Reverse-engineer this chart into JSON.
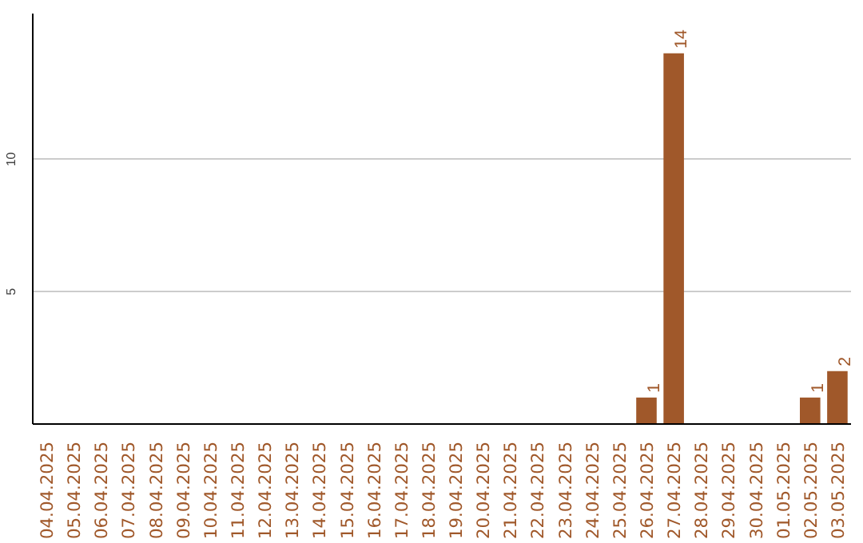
{
  "chart_data": {
    "type": "bar",
    "categories": [
      "04.04.2025",
      "05.04.2025",
      "06.04.2025",
      "07.04.2025",
      "08.04.2025",
      "09.04.2025",
      "10.04.2025",
      "11.04.2025",
      "12.04.2025",
      "13.04.2025",
      "14.04.2025",
      "15.04.2025",
      "16.04.2025",
      "17.04.2025",
      "18.04.2025",
      "19.04.2025",
      "20.04.2025",
      "21.04.2025",
      "22.04.2025",
      "23.04.2025",
      "24.04.2025",
      "25.04.2025",
      "26.04.2025",
      "27.04.2025",
      "28.04.2025",
      "29.04.2025",
      "30.04.2025",
      "01.05.2025",
      "02.05.2025",
      "03.05.2025"
    ],
    "values": [
      0,
      0,
      0,
      0,
      0,
      0,
      0,
      0,
      0,
      0,
      0,
      0,
      0,
      0,
      0,
      0,
      0,
      0,
      0,
      0,
      0,
      0,
      1,
      14,
      0,
      0,
      0,
      0,
      1,
      2
    ],
    "value_labels": [
      null,
      null,
      null,
      null,
      null,
      null,
      null,
      null,
      null,
      null,
      null,
      null,
      null,
      null,
      null,
      null,
      null,
      null,
      null,
      null,
      null,
      null,
      "1",
      "14",
      null,
      null,
      null,
      null,
      "1",
      "2"
    ],
    "color": "#a0582a",
    "ylim": [
      0,
      15.5
    ],
    "yticks": [
      5,
      10
    ],
    "grid": "y"
  }
}
